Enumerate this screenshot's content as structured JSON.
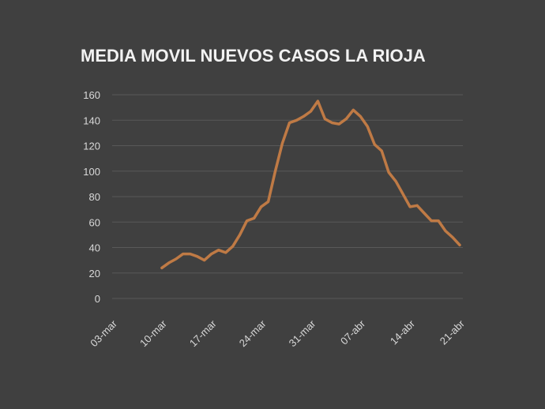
{
  "chart_data": {
    "type": "line",
    "title": "MEDIA MOVIL NUEVOS CASOS LA RIOJA",
    "categories": [
      "03-mar",
      null,
      null,
      null,
      null,
      null,
      null,
      "10-mar",
      null,
      null,
      null,
      null,
      null,
      null,
      "17-mar",
      null,
      null,
      null,
      null,
      null,
      null,
      "24-mar",
      null,
      null,
      null,
      null,
      null,
      null,
      "31-mar",
      null,
      null,
      null,
      null,
      null,
      null,
      "07-abr",
      null,
      null,
      null,
      null,
      null,
      null,
      "14-abr",
      null,
      null,
      null,
      null,
      null,
      null,
      "21-abr"
    ],
    "series": [
      {
        "color": "#bf7a45",
        "values": [
          null,
          null,
          null,
          null,
          null,
          null,
          null,
          24,
          28,
          31,
          35,
          35,
          33,
          30,
          35,
          38,
          36,
          41,
          50,
          61,
          63,
          72,
          76,
          100,
          122,
          138,
          140,
          143,
          147,
          155,
          141,
          138,
          137,
          141,
          148,
          143,
          135,
          121,
          116,
          99,
          92,
          82,
          72,
          73,
          67,
          61,
          61,
          53,
          48,
          42
        ]
      }
    ],
    "ylim": [
      0,
      160
    ],
    "yticks": [
      0,
      20,
      40,
      60,
      80,
      100,
      120,
      140,
      160
    ],
    "grid": true
  }
}
